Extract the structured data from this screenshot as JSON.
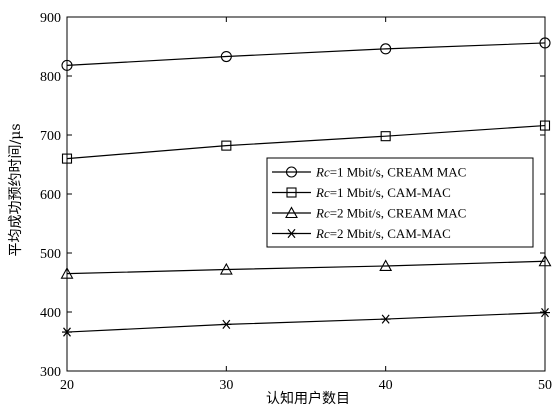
{
  "chart_data": {
    "type": "line",
    "xlabel": "认知用户数目",
    "ylabel": "平均成功预约时间/μs",
    "x": [
      20,
      30,
      40,
      50
    ],
    "xlim": [
      20,
      50
    ],
    "ylim": [
      300,
      900
    ],
    "xticks": [
      "20",
      "30",
      "40",
      "50"
    ],
    "yticks": [
      "300",
      "400",
      "500",
      "600",
      "700",
      "800",
      "900"
    ],
    "grid": false,
    "legend_position": "center-right",
    "series": [
      {
        "name_italic": "Rc",
        "name_rest": "=1 Mbit/s, CREAM MAC",
        "marker": "circle",
        "values": [
          818,
          833,
          846,
          856
        ]
      },
      {
        "name_italic": "Rc",
        "name_rest": "=1 Mbit/s, CAM-MAC",
        "marker": "square",
        "values": [
          660,
          682,
          698,
          716
        ]
      },
      {
        "name_italic": "Rc",
        "name_rest": "=2 Mbit/s, CREAM MAC",
        "marker": "triangle",
        "values": [
          465,
          472,
          478,
          486
        ]
      },
      {
        "name_italic": "Rc",
        "name_rest": "=2 Mbit/s, CAM-MAC",
        "marker": "asterisk",
        "values": [
          366,
          379,
          388,
          399
        ]
      }
    ]
  }
}
